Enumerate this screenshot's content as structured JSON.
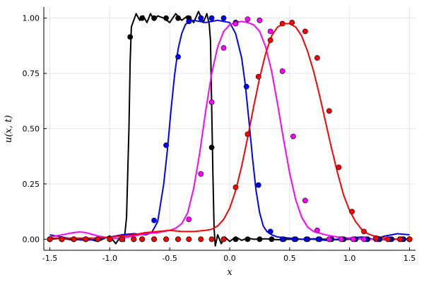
{
  "chart_data": {
    "type": "line",
    "title": "",
    "xlabel": "x",
    "ylabel": "u(x, t)",
    "xlim": [
      -1.55,
      1.55
    ],
    "ylim": [
      -0.05,
      1.05
    ],
    "grid": true,
    "legend": "none",
    "x_ticks": [
      -1.5,
      -1.0,
      -0.5,
      0.0,
      0.5,
      1.0,
      1.5
    ],
    "x_tick_labels": [
      "-1.5",
      "-1.0",
      "-0.5",
      "0.0",
      "0.5",
      "1.0",
      "1.5"
    ],
    "y_ticks": [
      0.0,
      0.25,
      0.5,
      0.75,
      1.0
    ],
    "y_tick_labels": [
      "0.00",
      "0.25",
      "0.50",
      "0.75",
      "1.00"
    ],
    "series": [
      {
        "color": "#000000",
        "line": {
          "x": [
            -1.5,
            -1.4,
            -1.3,
            -1.2,
            -1.1,
            -1.0,
            -0.95,
            -0.9,
            -0.88,
            -0.86,
            -0.84,
            -0.83,
            -0.82,
            -0.8,
            -0.78,
            -0.75,
            -0.72,
            -0.69,
            -0.66,
            -0.63,
            -0.6,
            -0.55,
            -0.5,
            -0.45,
            -0.4,
            -0.35,
            -0.3,
            -0.26,
            -0.22,
            -0.19,
            -0.17,
            -0.16,
            -0.15,
            -0.14,
            -0.13,
            -0.12,
            -0.1,
            -0.07,
            -0.04,
            0.0,
            0.05,
            0.1,
            0.15,
            0.2,
            0.3,
            0.4,
            0.5,
            0.6,
            0.7,
            0.8,
            0.9,
            1.0,
            1.1,
            1.2,
            1.3,
            1.4,
            1.5
          ],
          "y": [
            0.0,
            0.005,
            -0.005,
            0.005,
            -0.01,
            0.015,
            -0.02,
            0.02,
            -0.01,
            0.1,
            0.5,
            0.8,
            0.96,
            0.99,
            1.02,
            0.99,
            1.01,
            0.98,
            1.02,
            0.99,
            1.01,
            1.0,
            0.98,
            1.02,
            0.99,
            1.01,
            0.98,
            1.03,
            0.98,
            1.02,
            0.97,
            0.9,
            0.6,
            0.3,
            0.05,
            -0.03,
            0.02,
            -0.02,
            0.01,
            -0.01,
            0.01,
            -0.005,
            0.005,
            0.0,
            0.002,
            -0.002,
            0.0,
            0.0,
            0.002,
            0.0,
            -0.002,
            0.0,
            0.002,
            0.0,
            -0.002,
            0.0,
            0.0
          ]
        },
        "points": {
          "x": [
            -1.5,
            -1.4,
            -1.3,
            -1.2,
            -1.1,
            -1.0,
            -0.9,
            -0.83,
            -0.73,
            -0.63,
            -0.53,
            -0.43,
            -0.34,
            -0.24,
            -0.15,
            -0.05,
            0.05,
            0.15,
            0.25,
            0.35,
            0.45,
            0.55,
            0.65,
            0.75,
            0.85,
            0.95,
            1.05,
            1.15,
            1.25,
            1.35,
            1.45,
            1.5
          ],
          "y": [
            0.0,
            0.0,
            0.0,
            0.0,
            0.0,
            0.0,
            0.0,
            0.915,
            1.0,
            1.0,
            1.0,
            1.0,
            1.0,
            1.0,
            0.415,
            0.0,
            0.0,
            0.0,
            0.0,
            0.0,
            0.0,
            0.0,
            0.0,
            0.0,
            0.0,
            0.0,
            0.0,
            0.0,
            0.0,
            0.0,
            0.0,
            0.0
          ]
        }
      },
      {
        "color": "#0000ff",
        "line": {
          "x": [
            -1.5,
            -1.4,
            -1.3,
            -1.2,
            -1.1,
            -1.0,
            -0.9,
            -0.8,
            -0.7,
            -0.65,
            -0.6,
            -0.55,
            -0.52,
            -0.49,
            -0.46,
            -0.43,
            -0.4,
            -0.37,
            -0.34,
            -0.3,
            -0.25,
            -0.2,
            -0.15,
            -0.1,
            -0.05,
            0.0,
            0.05,
            0.1,
            0.13,
            0.16,
            0.19,
            0.22,
            0.25,
            0.28,
            0.31,
            0.35,
            0.4,
            0.5,
            0.6,
            0.7,
            0.8,
            0.9,
            1.0,
            1.1,
            1.2,
            1.3,
            1.4,
            1.5
          ],
          "y": [
            0.02,
            0.01,
            0.0,
            -0.005,
            0.0,
            0.01,
            0.02,
            0.025,
            0.02,
            0.03,
            0.08,
            0.25,
            0.4,
            0.58,
            0.74,
            0.86,
            0.93,
            0.97,
            0.985,
            0.99,
            0.985,
            0.98,
            0.985,
            0.99,
            0.985,
            0.98,
            0.93,
            0.82,
            0.7,
            0.54,
            0.37,
            0.22,
            0.12,
            0.06,
            0.035,
            0.02,
            0.01,
            0.005,
            0.0,
            0.0,
            -0.005,
            0.0,
            0.005,
            0.01,
            0.0,
            0.015,
            0.025,
            0.02
          ]
        },
        "points": {
          "x": [
            -1.5,
            -1.4,
            -1.3,
            -1.2,
            -1.1,
            -1.0,
            -0.9,
            -0.8,
            -0.73,
            -0.63,
            -0.53,
            -0.43,
            -0.34,
            -0.24,
            -0.15,
            -0.05,
            0.05,
            0.14,
            0.24,
            0.34,
            0.44,
            0.54,
            0.64,
            0.74,
            0.84,
            0.94,
            1.04,
            1.14,
            1.24,
            1.34,
            1.44,
            1.5
          ],
          "y": [
            0.0,
            0.0,
            0.0,
            0.0,
            0.0,
            0.0,
            0.0,
            0.0,
            0.0,
            0.085,
            0.425,
            0.825,
            0.985,
            1.0,
            1.0,
            1.0,
            0.98,
            0.69,
            0.245,
            0.035,
            0.0,
            0.0,
            0.0,
            0.0,
            0.0,
            0.0,
            0.0,
            0.0,
            0.0,
            0.0,
            0.0,
            0.0
          ]
        }
      },
      {
        "color": "#ff00ff",
        "line": {
          "x": [
            -1.5,
            -1.4,
            -1.3,
            -1.25,
            -1.2,
            -1.1,
            -1.0,
            -0.9,
            -0.8,
            -0.7,
            -0.6,
            -0.5,
            -0.45,
            -0.4,
            -0.35,
            -0.3,
            -0.25,
            -0.2,
            -0.15,
            -0.1,
            -0.05,
            0.0,
            0.05,
            0.1,
            0.15,
            0.2,
            0.25,
            0.3,
            0.35,
            0.4,
            0.45,
            0.5,
            0.55,
            0.6,
            0.65,
            0.7,
            0.8,
            0.9,
            1.0,
            1.1,
            1.2,
            1.3,
            1.4,
            1.5
          ],
          "y": [
            0.01,
            0.02,
            0.03,
            0.033,
            0.03,
            0.015,
            0.005,
            0.005,
            0.015,
            0.025,
            0.03,
            0.04,
            0.05,
            0.07,
            0.12,
            0.23,
            0.39,
            0.58,
            0.75,
            0.87,
            0.94,
            0.97,
            0.98,
            0.985,
            0.98,
            0.97,
            0.94,
            0.87,
            0.76,
            0.61,
            0.45,
            0.3,
            0.18,
            0.1,
            0.055,
            0.035,
            0.02,
            0.01,
            0.005,
            0.0,
            0.0,
            0.0,
            0.0,
            0.0
          ]
        },
        "points": {
          "x": [
            -1.5,
            -1.4,
            -1.3,
            -1.2,
            -1.1,
            -1.0,
            -0.9,
            -0.8,
            -0.73,
            -0.63,
            -0.53,
            -0.43,
            -0.34,
            -0.24,
            -0.15,
            -0.05,
            0.05,
            0.15,
            0.25,
            0.34,
            0.44,
            0.53,
            0.63,
            0.73,
            0.83,
            0.93,
            1.03,
            1.12,
            1.22,
            1.32,
            1.42,
            1.5
          ],
          "y": [
            0.0,
            0.0,
            0.0,
            0.0,
            0.0,
            0.0,
            0.0,
            0.0,
            0.0,
            0.0,
            0.0,
            0.0,
            0.09,
            0.295,
            0.62,
            0.865,
            0.975,
            0.995,
            0.99,
            0.94,
            0.76,
            0.465,
            0.175,
            0.04,
            0.0,
            0.0,
            0.0,
            0.0,
            0.0,
            0.0,
            0.0,
            0.0
          ]
        }
      },
      {
        "color": "#ff0000",
        "line": {
          "x": [
            -1.5,
            -1.4,
            -1.3,
            -1.2,
            -1.1,
            -1.0,
            -0.9,
            -0.8,
            -0.7,
            -0.6,
            -0.5,
            -0.4,
            -0.3,
            -0.2,
            -0.15,
            -0.1,
            -0.05,
            0.0,
            0.05,
            0.1,
            0.15,
            0.2,
            0.25,
            0.3,
            0.35,
            0.4,
            0.45,
            0.5,
            0.55,
            0.6,
            0.65,
            0.7,
            0.75,
            0.8,
            0.85,
            0.9,
            0.95,
            1.0,
            1.05,
            1.1,
            1.15,
            1.2,
            1.3,
            1.4,
            1.5
          ],
          "y": [
            0.005,
            0.005,
            0.005,
            0.005,
            0.005,
            0.01,
            0.015,
            0.02,
            0.03,
            0.035,
            0.04,
            0.035,
            0.035,
            0.04,
            0.045,
            0.06,
            0.09,
            0.14,
            0.22,
            0.33,
            0.46,
            0.6,
            0.73,
            0.84,
            0.92,
            0.96,
            0.975,
            0.975,
            0.96,
            0.92,
            0.85,
            0.76,
            0.65,
            0.53,
            0.41,
            0.3,
            0.2,
            0.13,
            0.08,
            0.045,
            0.025,
            0.015,
            0.005,
            0.0,
            0.0
          ]
        },
        "points": {
          "x": [
            -1.5,
            -1.4,
            -1.3,
            -1.2,
            -1.1,
            -1.0,
            -0.9,
            -0.8,
            -0.73,
            -0.63,
            -0.53,
            -0.43,
            -0.34,
            -0.24,
            -0.15,
            -0.05,
            0.05,
            0.15,
            0.24,
            0.34,
            0.44,
            0.52,
            0.63,
            0.73,
            0.83,
            0.91,
            1.02,
            1.12,
            1.22,
            1.32,
            1.42,
            1.5
          ],
          "y": [
            0.0,
            0.0,
            0.0,
            0.0,
            0.0,
            0.0,
            0.0,
            0.0,
            0.0,
            0.0,
            0.0,
            0.0,
            0.0,
            0.0,
            0.0,
            0.0,
            0.235,
            0.475,
            0.735,
            0.9,
            0.975,
            0.98,
            0.94,
            0.82,
            0.58,
            0.325,
            0.125,
            0.035,
            0.005,
            0.0,
            0.0,
            0.0
          ]
        }
      }
    ]
  }
}
